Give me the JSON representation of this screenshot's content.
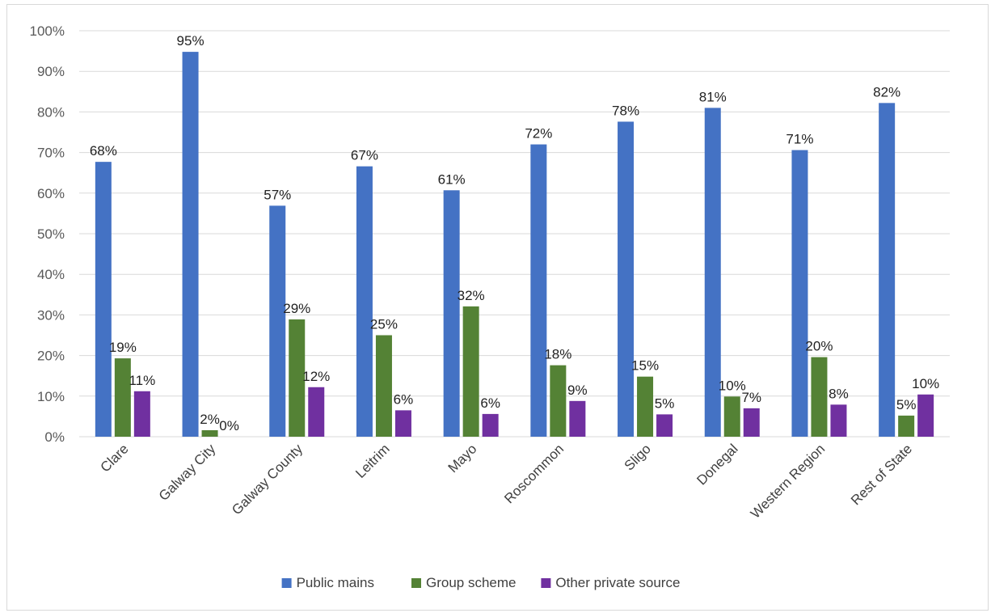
{
  "chart_data": {
    "type": "bar",
    "title": "",
    "xlabel": "",
    "ylabel": "",
    "ylim": [
      0,
      100
    ],
    "y_ticks": [
      0,
      10,
      20,
      30,
      40,
      50,
      60,
      70,
      80,
      90,
      100
    ],
    "y_tick_format": "percent",
    "grid": true,
    "legend_position": "bottom",
    "categories": [
      "Clare",
      "Galway City",
      "Galway County",
      "Leitrim",
      "Mayo",
      "Roscommon",
      "Sligo",
      "Donegal",
      "Western Region",
      "Rest of State"
    ],
    "series": [
      {
        "name": "Public mains",
        "color": "#4472C4",
        "values": [
          67.7,
          94.8,
          56.9,
          66.6,
          60.7,
          72.0,
          77.6,
          81.0,
          70.6,
          82.2
        ],
        "labels": [
          "68%",
          "95%",
          "57%",
          "67%",
          "61%",
          "72%",
          "78%",
          "81%",
          "71%",
          "82%"
        ]
      },
      {
        "name": "Group scheme",
        "color": "#548235",
        "values": [
          19.3,
          1.6,
          28.9,
          25.0,
          32.1,
          17.6,
          14.8,
          9.9,
          19.6,
          5.2
        ],
        "labels": [
          "19%",
          "2%",
          "29%",
          "25%",
          "32%",
          "18%",
          "15%",
          "10%",
          "20%",
          "5%"
        ]
      },
      {
        "name": "Other private source",
        "color": "#7030A0",
        "values": [
          11.2,
          0.0,
          12.2,
          6.5,
          5.6,
          8.8,
          5.5,
          7.0,
          7.9,
          10.4
        ],
        "labels": [
          "11%",
          "0%",
          "12%",
          "6%",
          "6%",
          "9%",
          "5%",
          "7%",
          "8%",
          "10%"
        ]
      }
    ]
  }
}
